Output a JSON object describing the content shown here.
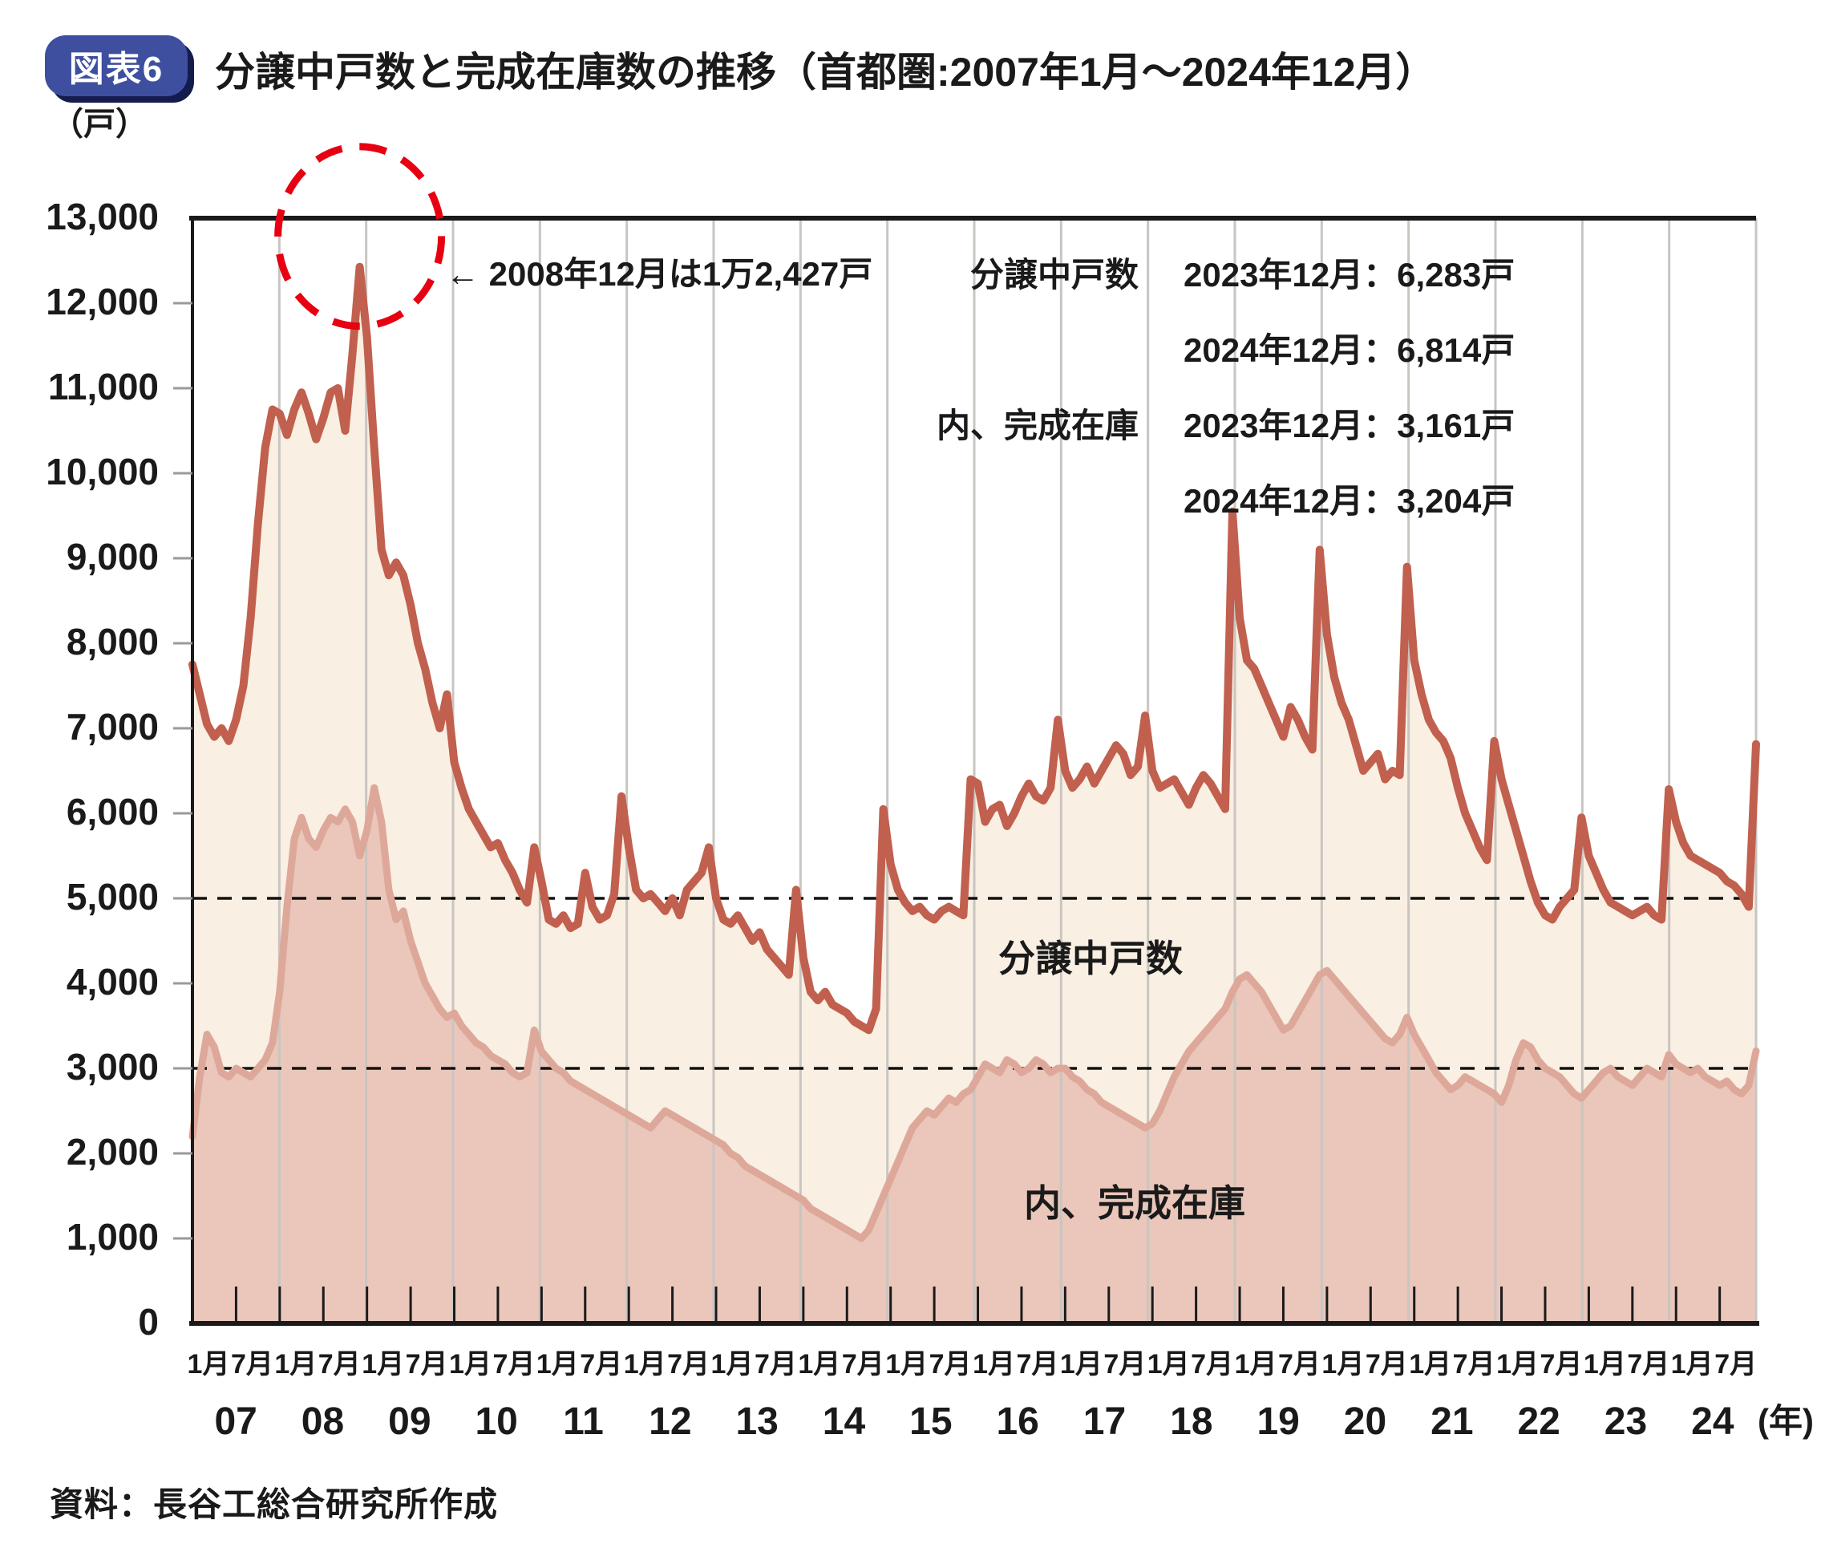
{
  "figure": {
    "badge": "図表6",
    "title": "分譲中戸数と完成在庫数の推移（首都圏:2007年1月～2024年12月）",
    "unit_label": "（戸）",
    "year_axis_suffix": "(年)",
    "source": "資料：長谷工総合研究所作成"
  },
  "legend": {
    "rows": [
      {
        "label": "分譲中戸数",
        "value": "2023年12月：6,283戸"
      },
      {
        "label": "",
        "value": "2024年12月：6,814戸"
      },
      {
        "label": "内、完成在庫",
        "value": "2023年12月：3,161戸"
      },
      {
        "label": "",
        "value": "2024年12月：3,204戸"
      }
    ]
  },
  "colors": {
    "badge_bg": "#3e4f9f",
    "badge_shadow": "#141b4d",
    "outer_line": "#c1604e",
    "outer_fill": "#f9efe2",
    "inner_line": "#dda89a",
    "inner_fill": "#eac7ba",
    "gridline": "#c9c5c1",
    "axis": "#1a1a1a",
    "dashed_line": "#111111",
    "highlight_red": "#e60012"
  },
  "chart_data": {
    "type": "area",
    "title": "分譲中戸数と完成在庫数の推移（首都圏:2007年1月～2024年12月）",
    "x_start": "2007-01",
    "x_end": "2024-12",
    "months_per_year": 12,
    "month_tick_labels": [
      "1月",
      "7月"
    ],
    "years": [
      "07",
      "08",
      "09",
      "10",
      "11",
      "12",
      "13",
      "14",
      "15",
      "16",
      "17",
      "18",
      "19",
      "20",
      "21",
      "22",
      "23",
      "24"
    ],
    "ylabel": "（戸）",
    "ylim": [
      0,
      13000
    ],
    "ytick_step": 1000,
    "dashed_gridlines": [
      5000,
      3000
    ],
    "grid": "vertical-yearly",
    "legend_position": "top-right",
    "highlight": {
      "month": "2008-12",
      "value": 12427,
      "label": "← 2008年12月は1万2,427戸"
    },
    "series": [
      {
        "name": "分譲中戸数",
        "line_color": "#c1604e",
        "fill_color": "#f9efe2",
        "values": [
          7750,
          7400,
          7050,
          6900,
          7000,
          6850,
          7100,
          7500,
          8300,
          9400,
          10300,
          10750,
          10700,
          10450,
          10750,
          10950,
          10700,
          10400,
          10650,
          10950,
          11000,
          10500,
          11400,
          12427,
          11600,
          10300,
          9100,
          8800,
          8950,
          8800,
          8450,
          8000,
          7700,
          7300,
          7000,
          7400,
          6600,
          6300,
          6050,
          5900,
          5750,
          5600,
          5650,
          5450,
          5300,
          5100,
          4950,
          5600,
          5200,
          4750,
          4700,
          4800,
          4650,
          4700,
          5300,
          4900,
          4750,
          4800,
          5050,
          6200,
          5600,
          5100,
          5000,
          5050,
          4950,
          4850,
          5000,
          4800,
          5100,
          5200,
          5300,
          5600,
          5000,
          4750,
          4700,
          4800,
          4650,
          4500,
          4600,
          4400,
          4300,
          4200,
          4100,
          5100,
          4300,
          3900,
          3800,
          3900,
          3750,
          3700,
          3650,
          3550,
          3500,
          3450,
          3700,
          6050,
          5400,
          5100,
          4950,
          4850,
          4900,
          4800,
          4750,
          4850,
          4900,
          4850,
          4800,
          6400,
          6350,
          5900,
          6050,
          6100,
          5850,
          6000,
          6200,
          6350,
          6200,
          6150,
          6300,
          7100,
          6500,
          6300,
          6400,
          6550,
          6350,
          6500,
          6650,
          6800,
          6700,
          6450,
          6550,
          7150,
          6500,
          6300,
          6350,
          6400,
          6250,
          6100,
          6300,
          6450,
          6350,
          6200,
          6050,
          9550,
          8300,
          7800,
          7700,
          7500,
          7300,
          7100,
          6900,
          7250,
          7100,
          6900,
          6750,
          9100,
          8100,
          7600,
          7300,
          7100,
          6800,
          6500,
          6600,
          6700,
          6400,
          6500,
          6450,
          8900,
          7800,
          7400,
          7100,
          6950,
          6850,
          6650,
          6300,
          6000,
          5800,
          5600,
          5450,
          6850,
          6400,
          6100,
          5800,
          5500,
          5200,
          4950,
          4800,
          4750,
          4900,
          5000,
          5100,
          5950,
          5500,
          5300,
          5100,
          4950,
          4900,
          4850,
          4800,
          4850,
          4900,
          4800,
          4750,
          6283,
          5900,
          5650,
          5500,
          5450,
          5400,
          5350,
          5300,
          5200,
          5150,
          5050,
          4900,
          6814
        ]
      },
      {
        "name": "内、完成在庫",
        "line_color": "#dda89a",
        "fill_color": "#eac7ba",
        "values": [
          2200,
          2900,
          3400,
          3250,
          2950,
          2900,
          3000,
          2950,
          2900,
          3000,
          3100,
          3300,
          3900,
          4900,
          5700,
          5950,
          5700,
          5600,
          5800,
          5950,
          5900,
          6050,
          5900,
          5500,
          5800,
          6300,
          5900,
          5100,
          4750,
          4850,
          4500,
          4250,
          4000,
          3850,
          3700,
          3600,
          3650,
          3500,
          3400,
          3300,
          3250,
          3150,
          3100,
          3050,
          2950,
          2900,
          2950,
          3450,
          3200,
          3100,
          3000,
          2950,
          2850,
          2800,
          2750,
          2700,
          2650,
          2600,
          2550,
          2500,
          2450,
          2400,
          2350,
          2300,
          2400,
          2500,
          2450,
          2400,
          2350,
          2300,
          2250,
          2200,
          2150,
          2100,
          2000,
          1950,
          1850,
          1800,
          1750,
          1700,
          1650,
          1600,
          1550,
          1500,
          1450,
          1350,
          1300,
          1250,
          1200,
          1150,
          1100,
          1050,
          1000,
          1100,
          1300,
          1500,
          1700,
          1900,
          2100,
          2300,
          2400,
          2500,
          2450,
          2550,
          2650,
          2600,
          2700,
          2750,
          2900,
          3050,
          3000,
          2950,
          3100,
          3050,
          2950,
          3000,
          3100,
          3050,
          2950,
          3000,
          3000,
          2900,
          2850,
          2750,
          2700,
          2600,
          2550,
          2500,
          2450,
          2400,
          2350,
          2300,
          2350,
          2500,
          2700,
          2900,
          3050,
          3200,
          3300,
          3400,
          3500,
          3600,
          3700,
          3900,
          4050,
          4100,
          4000,
          3900,
          3750,
          3600,
          3450,
          3500,
          3650,
          3800,
          3950,
          4100,
          4150,
          4050,
          3950,
          3850,
          3750,
          3650,
          3550,
          3450,
          3350,
          3300,
          3400,
          3600,
          3400,
          3250,
          3100,
          2950,
          2850,
          2750,
          2800,
          2900,
          2850,
          2800,
          2750,
          2700,
          2600,
          2800,
          3100,
          3300,
          3250,
          3100,
          3000,
          2950,
          2900,
          2800,
          2700,
          2650,
          2750,
          2850,
          2950,
          3000,
          2900,
          2850,
          2800,
          2900,
          3000,
          2950,
          2900,
          3161,
          3050,
          3000,
          2950,
          3000,
          2900,
          2850,
          2800,
          2850,
          2750,
          2700,
          2800,
          3204
        ]
      }
    ]
  }
}
